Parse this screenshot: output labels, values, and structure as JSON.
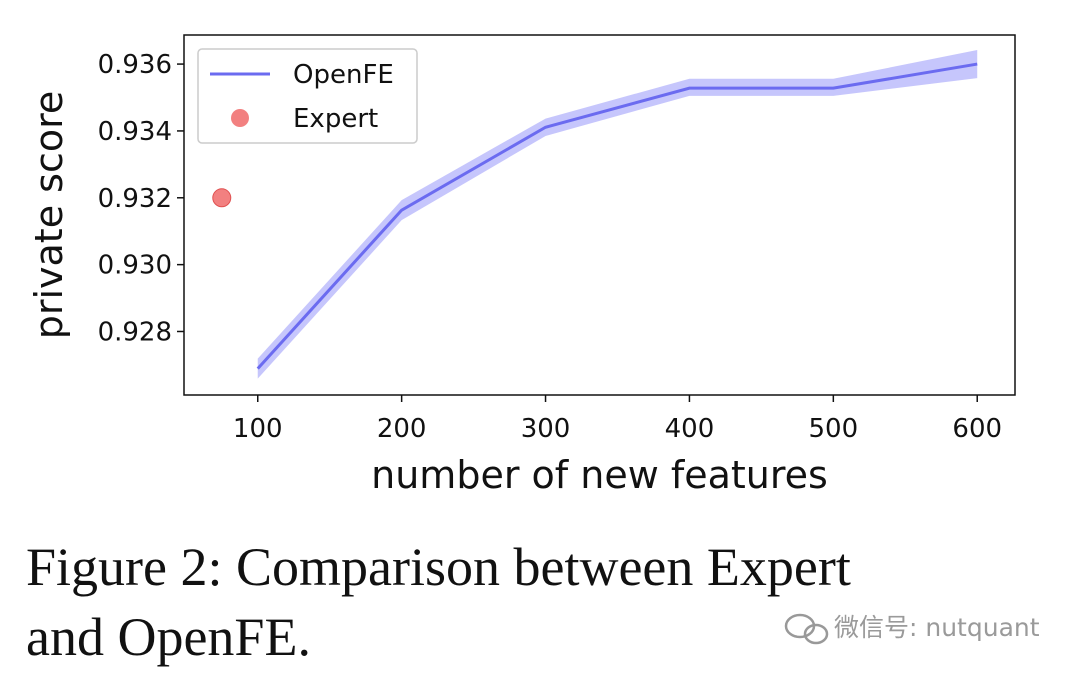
{
  "chart_data": {
    "type": "line",
    "xlabel": "number of new features",
    "ylabel": "private score",
    "xlim": [
      48.75,
      626.25
    ],
    "xticks": [
      100,
      200,
      300,
      400,
      500,
      600
    ],
    "ylim": [
      0.9261,
      0.93687
    ],
    "yticks": [
      0.928,
      0.93,
      0.932,
      0.934,
      0.936
    ],
    "series": [
      {
        "name": "OpenFE",
        "color": "#6b6bf0",
        "band_color": "#b8b8fb",
        "x": [
          100,
          200,
          300,
          400,
          500,
          600
        ],
        "values": [
          0.92689,
          0.93163,
          0.93411,
          0.93528,
          0.93528,
          0.936
        ],
        "lower": [
          0.92659,
          0.93133,
          0.93385,
          0.93505,
          0.93505,
          0.93558
        ],
        "upper": [
          0.92719,
          0.93193,
          0.93437,
          0.93556,
          0.93556,
          0.93642
        ]
      },
      {
        "name": "Expert",
        "color": "#f06a6a",
        "x": [
          75
        ],
        "values": [
          0.932
        ]
      }
    ],
    "legend": "upper left"
  },
  "caption": [
    "Figure 2:  Comparison between Expert",
    "and OpenFE."
  ],
  "watermark": "微信号: nutquant"
}
